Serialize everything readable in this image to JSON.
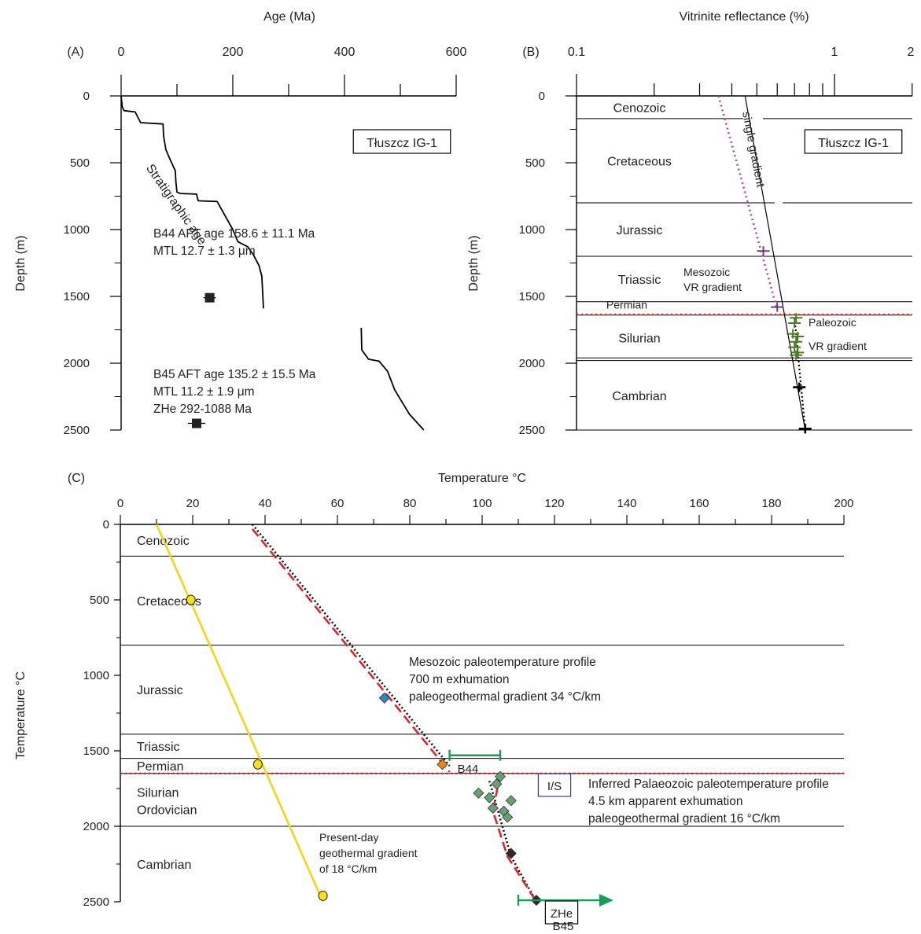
{
  "colors": {
    "axis": "#000000",
    "magenta": "#b0479a",
    "green_bar": "#1a9b5a",
    "red_dash": "#d8262b",
    "red_dot": "#e0281f",
    "yellow": "#f2d51c",
    "diamond_green": "#6a9e74",
    "diamond_blue": "#2e86c1",
    "diamond_orange": "#e8861a",
    "vr_purple": "#6b3a7a",
    "vr_green": "#4a7a2a",
    "is_box": "#3a3a9a"
  },
  "chart_data": [
    {
      "panel": "(A)",
      "type": "line",
      "xlabel": "Age (Ma)",
      "ylabel": "Depth (m)",
      "xlim": [
        0,
        600
      ],
      "ylim": [
        0,
        2500
      ],
      "x_ticks": [
        "0",
        "200",
        "400",
        "600"
      ],
      "y_ticks": [
        "0",
        "500",
        "1000",
        "1500",
        "2000",
        "2500"
      ],
      "legend_box": "Tłuszcz IG-1",
      "line_label": "Stratigraphic age",
      "series": [
        {
          "points": [
            [
              0,
              0
            ],
            [
              2,
              80
            ],
            [
              5,
              110
            ],
            [
              25,
              120
            ],
            [
              35,
              200
            ],
            [
              75,
              210
            ],
            [
              76,
              300
            ],
            [
              80,
              400
            ],
            [
              87,
              470
            ],
            [
              97,
              560
            ],
            [
              98,
              640
            ],
            [
              100,
              720
            ],
            [
              106,
              730
            ],
            [
              135,
              735
            ],
            [
              138,
              785
            ],
            [
              172,
              790
            ],
            [
              200,
              1000
            ],
            [
              209,
              1090
            ],
            [
              227,
              1130
            ],
            [
              237,
              1190
            ],
            [
              247,
              1270
            ],
            [
              252,
              1350
            ],
            [
              255,
              1590
            ]
          ]
        },
        {
          "points": [
            [
              430,
              1735
            ],
            [
              431,
              1900
            ],
            [
              443,
              1970
            ],
            [
              462,
              1985
            ],
            [
              477,
              2060
            ],
            [
              490,
              2200
            ],
            [
              516,
              2380
            ],
            [
              542,
              2500
            ]
          ]
        }
      ],
      "samples": [
        {
          "name": "B44",
          "age": 158.6,
          "error": 11.1,
          "depth": 1510
        },
        {
          "name": "B45",
          "age": 135.2,
          "error": 15.5,
          "depth": 2450
        }
      ],
      "annotations": {
        "b44_age": "B44 AFT age 158.6 ± 11.1 Ma",
        "b44_mtl": "MTL 12.7 ±  1.3 μm",
        "b45_age": "B45 AFT age 135.2 ± 15.5 Ma",
        "b45_mtl": "MTL 11.2  ± 1.9 μm",
        "b45_zhe": "ZHe 292-1088 Ma"
      }
    },
    {
      "panel": "(B)",
      "type": "scatter",
      "xlabel": "Vitrinite reflectance (%)",
      "ylabel": "Depth (m)",
      "x_scale": "log",
      "xlim": [
        0.1,
        2
      ],
      "ylim": [
        0,
        2500
      ],
      "x_ticks": [
        "0.1",
        "1",
        "2"
      ],
      "y_ticks": [
        "0",
        "500",
        "1000",
        "1500",
        "2000",
        "2500"
      ],
      "legend_box": "Tłuszcz IG-1",
      "stratigraphy": [
        {
          "name": "Cenozoic",
          "top": 0,
          "base": 170
        },
        {
          "name": "Cretaceous",
          "top": 170,
          "base": 800
        },
        {
          "name": "Jurassic",
          "top": 800,
          "base": 1200
        },
        {
          "name": "Triassic",
          "top": 1200,
          "base": 1540
        },
        {
          "name": "Permian",
          "top": 1540,
          "base": 1640
        },
        {
          "name": "Silurian",
          "top": 1640,
          "base": 1980
        },
        {
          "name": "Cambrian",
          "top": 1980,
          "base": 2500
        }
      ],
      "unconformity_depth": 1635,
      "lines": {
        "single_gradient": {
          "label": "single gradient",
          "points": [
            [
              0.45,
              0
            ],
            [
              0.77,
              2500
            ]
          ]
        },
        "mesozoic_gradient": {
          "label_1": "Mesozoic",
          "label_2": "VR gradient",
          "points": [
            [
              0.355,
              0
            ],
            [
              0.6,
              1600
            ]
          ]
        },
        "paleozoic_gradient": {
          "label_1": "Paleozoic",
          "label_2": "VR gradient",
          "points": [
            [
              0.7,
              1660
            ],
            [
              0.77,
              2500
            ]
          ]
        }
      },
      "vr_points": [
        {
          "vr": 0.53,
          "depth": 1160,
          "group": "mesozoic"
        },
        {
          "vr": 0.6,
          "depth": 1580,
          "group": "mesozoic"
        },
        {
          "vr": 0.71,
          "depth": 1660,
          "group": "paleozoic"
        },
        {
          "vr": 0.7,
          "depth": 1700,
          "group": "paleozoic"
        },
        {
          "vr": 0.69,
          "depth": 1780,
          "group": "paleozoic"
        },
        {
          "vr": 0.72,
          "depth": 1800,
          "group": "paleozoic"
        },
        {
          "vr": 0.71,
          "depth": 1840,
          "group": "paleozoic"
        },
        {
          "vr": 0.7,
          "depth": 1880,
          "group": "paleozoic"
        },
        {
          "vr": 0.72,
          "depth": 1920,
          "group": "paleozoic"
        },
        {
          "vr": 0.71,
          "depth": 1940,
          "group": "paleozoic"
        },
        {
          "vr": 0.73,
          "depth": 2180,
          "group": "deep"
        },
        {
          "vr": 0.77,
          "depth": 2490,
          "group": "deep"
        }
      ]
    },
    {
      "panel": "(C)",
      "type": "scatter",
      "xlabel": "Temperature °C",
      "ylabel": "Temperature °C",
      "xlim": [
        0,
        200
      ],
      "ylim": [
        0,
        2500
      ],
      "x_ticks": [
        "0",
        "20",
        "40",
        "60",
        "80",
        "100",
        "120",
        "140",
        "160",
        "180",
        "200"
      ],
      "y_ticks": [
        "0",
        "500",
        "1000",
        "1500",
        "2000",
        "2500"
      ],
      "stratigraphy": [
        {
          "name": "Cenozoic",
          "top": 0,
          "base": 210
        },
        {
          "name": "Cretaceous",
          "top": 210,
          "base": 800
        },
        {
          "name": "Jurassic",
          "top": 800,
          "base": 1390
        },
        {
          "name": "Triassic",
          "top": 1390,
          "base": 1550
        },
        {
          "name": "Permian",
          "top": 1550,
          "base": 1650
        },
        {
          "name": "Silurian",
          "name_2": "Ordovician",
          "top": 1650,
          "base": 2000
        },
        {
          "name": "Cambrian",
          "top": 2000,
          "base": 2500
        }
      ],
      "unconformity_depth": 1650,
      "present_day": {
        "label_1": "Present-day",
        "label_2": "geothermal gradient",
        "label_3": "of 18 °C/km",
        "line": [
          [
            10,
            0
          ],
          [
            56,
            2500
          ]
        ],
        "points": [
          [
            19.5,
            500
          ],
          [
            38,
            1590
          ],
          [
            56,
            2460
          ]
        ]
      },
      "mesozoic_profile": {
        "label_1": "Mesozoic paleotemperature profile",
        "label_2": "700 m exhumation",
        "label_3": "paleogeothermal gradient 34 °C/km",
        "red_line": [
          [
            36.5,
            30
          ],
          [
            91,
            1640
          ]
        ],
        "dotted_line": [
          [
            36.5,
            0
          ],
          [
            91,
            1600
          ]
        ]
      },
      "paleozoic_profile": {
        "label_1": "Inferred Palaeozoic paleotemperature profile",
        "label_2": "4.5 km apparent exhumation",
        "label_3": "paleogeothermal  gradient 16 °C/km",
        "red_line": [
          [
            105,
            1650
          ],
          [
            103,
            1900
          ],
          [
            107,
            2200
          ],
          [
            115,
            2500
          ]
        ],
        "dotted_line": [
          [
            102,
            1700
          ],
          [
            108,
            2200
          ],
          [
            115,
            2500
          ]
        ]
      },
      "diamonds": [
        {
          "t": 73,
          "depth": 1150,
          "color": "blue"
        },
        {
          "t": 89,
          "depth": 1590,
          "color": "orange"
        },
        {
          "t": 105,
          "depth": 1670,
          "color": "green"
        },
        {
          "t": 104,
          "depth": 1720,
          "color": "green"
        },
        {
          "t": 99,
          "depth": 1780,
          "color": "green"
        },
        {
          "t": 102,
          "depth": 1810,
          "color": "green"
        },
        {
          "t": 108,
          "depth": 1830,
          "color": "green"
        },
        {
          "t": 103,
          "depth": 1880,
          "color": "green"
        },
        {
          "t": 106,
          "depth": 1900,
          "color": "green"
        },
        {
          "t": 107,
          "depth": 1940,
          "color": "green"
        },
        {
          "t": 108,
          "depth": 2180,
          "color": "black"
        },
        {
          "t": 115,
          "depth": 2490,
          "color": "black"
        }
      ],
      "b44_bar": {
        "label": "B44",
        "t_min": 91,
        "t_max": 105,
        "depth": 1530
      },
      "b45_bar": {
        "label": "B45",
        "t_min": 110,
        "t_max": 135,
        "depth": 2490
      },
      "is_label": "I/S",
      "zhe_label": "ZHe"
    }
  ]
}
